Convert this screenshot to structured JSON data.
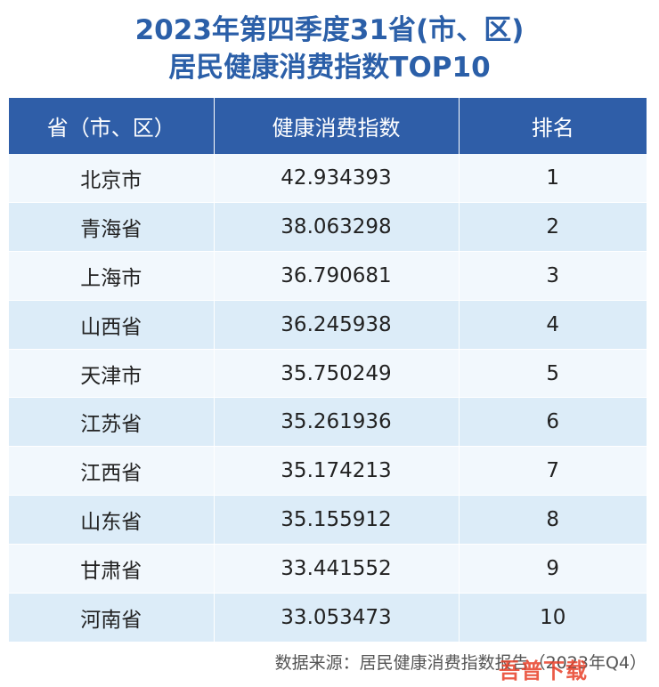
{
  "title": {
    "line1": "2023年第四季度31省(市、区)",
    "line2": "居民健康消费指数TOP10"
  },
  "table": {
    "headers": [
      "省（市、区）",
      "健康消费指数",
      "排名"
    ],
    "rows": [
      [
        "北京市",
        "42.934393",
        "1"
      ],
      [
        "青海省",
        "38.063298",
        "2"
      ],
      [
        "上海市",
        "36.790681",
        "3"
      ],
      [
        "山西省",
        "36.245938",
        "4"
      ],
      [
        "天津市",
        "35.750249",
        "5"
      ],
      [
        "江苏省",
        "35.261936",
        "6"
      ],
      [
        "江西省",
        "35.174213",
        "7"
      ],
      [
        "山东省",
        "35.155912",
        "8"
      ],
      [
        "甘肃省",
        "33.441552",
        "9"
      ],
      [
        "河南省",
        "33.053473",
        "10"
      ]
    ]
  },
  "source": "数据来源：居民健康消费指数报告（2023年Q4）",
  "watermark": "吾普下载",
  "colors": {
    "title": "#2b5fa8",
    "header_bg": "#2f5ea8",
    "row_light": "#f2f8fd",
    "row_dark": "#dcecf8"
  }
}
